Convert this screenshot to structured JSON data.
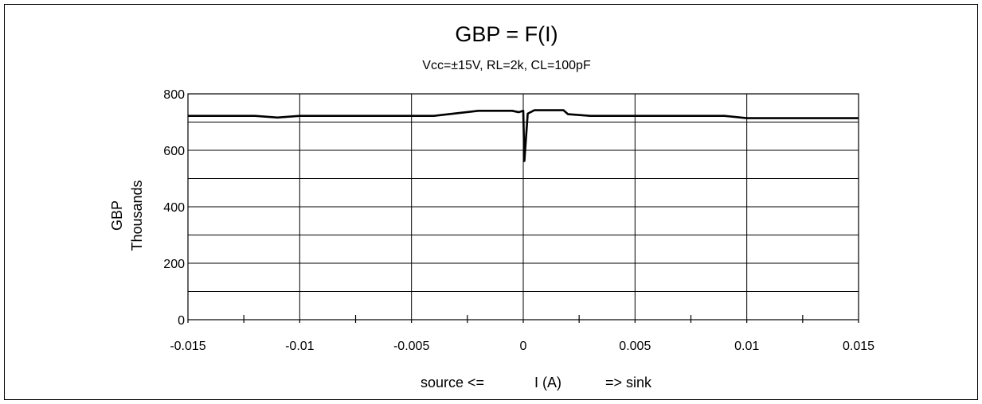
{
  "chart_data": {
    "type": "line",
    "title": "GBP = F(I)",
    "subtitle": "Vcc=±15V, RL=2k, CL=100pF",
    "ylabel": "GBP",
    "yunit": "Thousands",
    "xlabel_parts": [
      "source <=",
      "I (A)",
      "=> sink"
    ],
    "xlim": [
      -0.015,
      0.015
    ],
    "ylim": [
      0,
      800
    ],
    "x_ticks": [
      "-0.015",
      "-0.01",
      "-0.005",
      "0",
      "0.005",
      "0.01",
      "0.015"
    ],
    "y_ticks": [
      "0",
      "200",
      "400",
      "600",
      "800"
    ],
    "grid": true,
    "line_color": "#000000",
    "series": [
      {
        "x": [
          -0.015,
          -0.012,
          -0.011,
          -0.01,
          -0.004,
          -0.002,
          -0.0005,
          -0.0002,
          0,
          5e-05,
          0.0002,
          0.0005,
          0.0018,
          0.002,
          0.003,
          0.009,
          0.01,
          0.015
        ],
        "y": [
          722,
          722,
          716,
          722,
          722,
          740,
          740,
          735,
          740,
          562,
          730,
          742,
          742,
          728,
          722,
          722,
          714,
          714
        ]
      }
    ]
  }
}
